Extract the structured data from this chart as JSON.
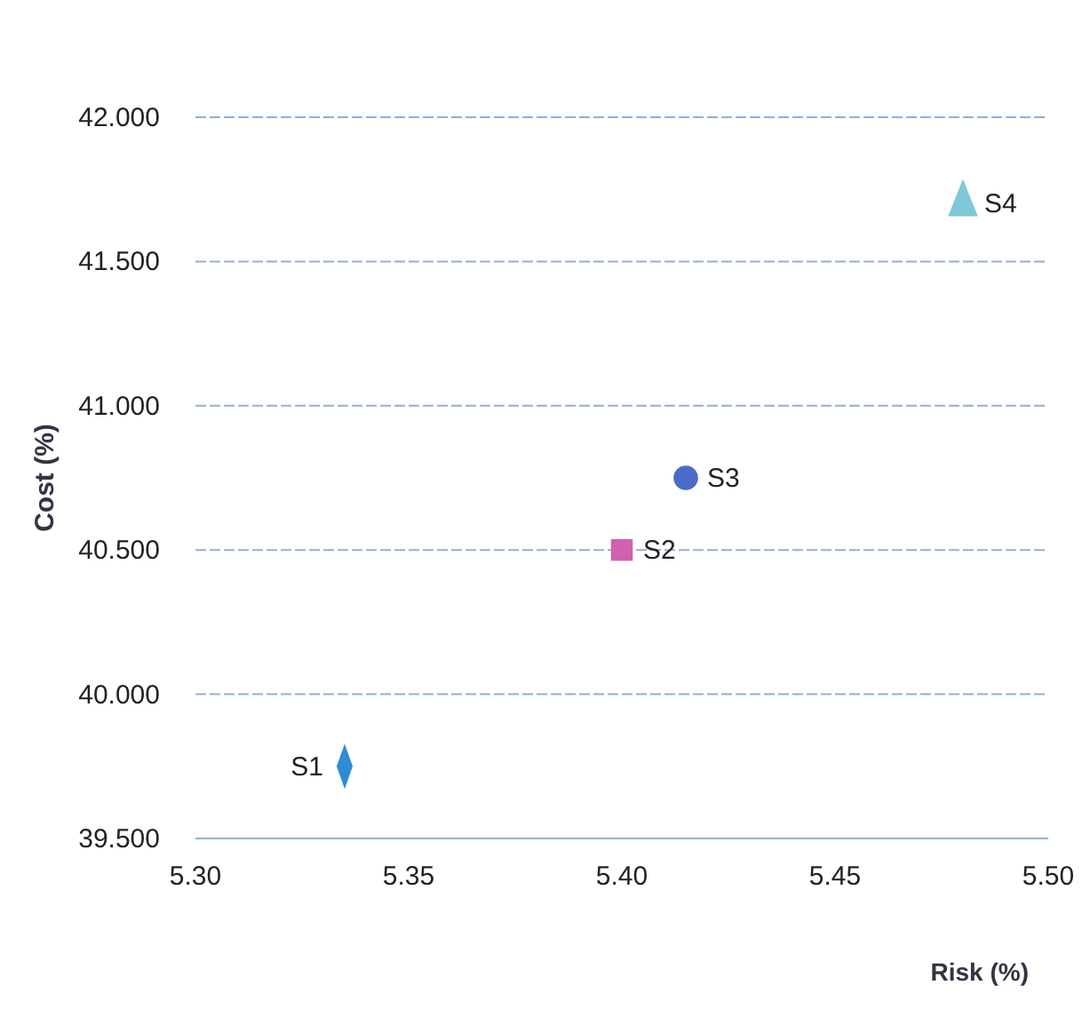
{
  "chart_data": {
    "type": "scatter",
    "xlabel": "Risk (%)",
    "ylabel": "Cost (%)",
    "grid": "y",
    "xlim": [
      5.3,
      5.5
    ],
    "xticks": [
      {
        "value": 5.3,
        "label": "5.30"
      },
      {
        "value": 5.35,
        "label": "5.35"
      },
      {
        "value": 5.4,
        "label": "5.40"
      },
      {
        "value": 5.45,
        "label": "5.45"
      },
      {
        "value": 5.5,
        "label": "5.50"
      }
    ],
    "ylim": [
      39.5,
      42
    ],
    "yticks": [
      {
        "value": 39.5,
        "label": "39.500"
      },
      {
        "value": 40,
        "label": "40.000"
      },
      {
        "value": 40.5,
        "label": "40.500"
      },
      {
        "value": 41,
        "label": "41.000"
      },
      {
        "value": 41.5,
        "label": "41.500"
      },
      {
        "value": 42,
        "label": "42.000"
      }
    ],
    "series": [
      {
        "name": "S1",
        "color": "#2e8bd8",
        "marker": "diamond",
        "x": [
          5.335
        ],
        "values": [
          39.75
        ]
      },
      {
        "name": "S2",
        "color": "#d060b0",
        "marker": "square",
        "x": [
          5.4
        ],
        "values": [
          40.5
        ]
      },
      {
        "name": "S3",
        "color": "#4a6cc8",
        "marker": "circle",
        "x": [
          5.415
        ],
        "values": [
          40.75
        ]
      },
      {
        "name": "S4",
        "color": "#7ec8d8",
        "marker": "triangle",
        "x": [
          5.48
        ],
        "values": [
          41.7
        ]
      }
    ]
  }
}
